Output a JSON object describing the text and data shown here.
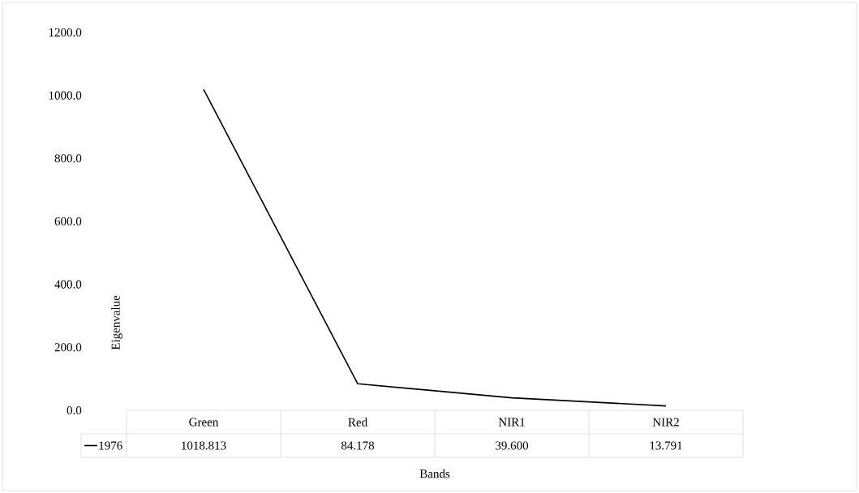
{
  "chart_data": {
    "type": "line",
    "xlabel": "Bands",
    "ylabel": "Eigenvalue",
    "categories": [
      "Green",
      "Red",
      "NIR1",
      "NIR2"
    ],
    "series": [
      {
        "name": "1976",
        "color": "#000000",
        "values": [
          1018.813,
          84.178,
          39.6,
          13.791
        ],
        "value_labels": [
          "1018.813",
          "84.178",
          "39.600",
          "13.791"
        ]
      }
    ],
    "ylim": [
      0,
      1200
    ],
    "yticks": [
      {
        "value": 0,
        "label": "0.0"
      },
      {
        "value": 200,
        "label": "200.0"
      },
      {
        "value": 400,
        "label": "400.0"
      },
      {
        "value": 600,
        "label": "600.0"
      },
      {
        "value": 800,
        "label": "800.0"
      },
      {
        "value": 1000,
        "label": "1000.0"
      },
      {
        "value": 1200,
        "label": "1200.0"
      }
    ],
    "grid": false,
    "legend": "bottom",
    "marker": "none",
    "line_style": "solid"
  }
}
